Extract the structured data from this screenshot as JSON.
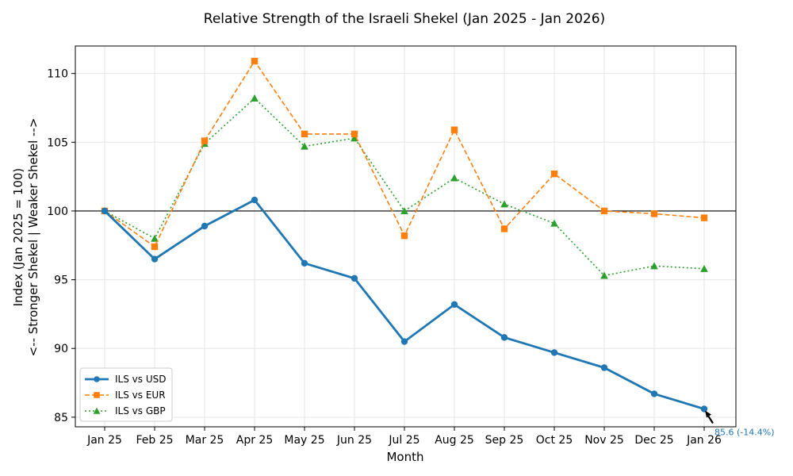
{
  "chart_data": {
    "type": "line",
    "title": "Relative Strength of the Israeli Shekel (Jan 2025 - Jan 2026)",
    "xlabel": "Month",
    "ylabel_line1": "Index (Jan 2025 = 100)",
    "ylabel_line2": "<-- Stronger Shekel | Weaker Shekel -->",
    "categories": [
      "Jan 25",
      "Feb 25",
      "Mar 25",
      "Apr 25",
      "May 25",
      "Jun 25",
      "Jul 25",
      "Aug 25",
      "Sep 25",
      "Oct 25",
      "Nov 25",
      "Dec 25",
      "Jan 26"
    ],
    "ylim": [
      84.3,
      112
    ],
    "yticks": [
      85,
      90,
      95,
      100,
      105,
      110
    ],
    "grid": true,
    "reference_line": 100,
    "legend_position": "lower-left",
    "series": [
      {
        "name": "ILS vs USD",
        "color": "#1f77b4",
        "marker": "circle",
        "style": "solid",
        "values": [
          100,
          96.5,
          98.9,
          100.8,
          96.2,
          95.1,
          90.5,
          93.2,
          90.8,
          89.7,
          88.6,
          86.7,
          85.6
        ]
      },
      {
        "name": "ILS vs EUR",
        "color": "#ff7f0e",
        "marker": "square",
        "style": "dashed",
        "values": [
          100,
          97.4,
          105.1,
          110.9,
          105.6,
          105.6,
          98.2,
          105.9,
          98.7,
          102.7,
          100.0,
          99.8,
          99.5
        ]
      },
      {
        "name": "ILS vs GBP",
        "color": "#2ca02c",
        "marker": "triangle",
        "style": "dotted",
        "values": [
          100,
          98.0,
          104.9,
          108.2,
          104.7,
          105.3,
          100.0,
          102.4,
          100.5,
          99.1,
          95.3,
          96.0,
          95.8
        ]
      }
    ],
    "annotation": {
      "text": "85.6 (-14.4%)",
      "color": "#1f77b4",
      "series": "ILS vs USD",
      "category": "Jan 26"
    }
  }
}
